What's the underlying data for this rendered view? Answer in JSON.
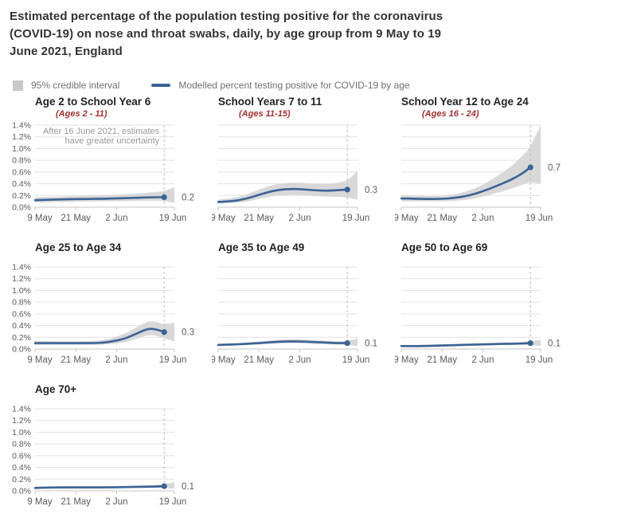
{
  "title": "Estimated percentage of the population testing positive for the coronavirus (COVID-19) on nose and throat swabs, daily, by age group from 9 May to 19 June 2021, England",
  "legend": {
    "ci_label": "95% credible interval",
    "line_label": "Modelled percent testing positive for COVID-19 by age"
  },
  "colors": {
    "line": "#3a6394",
    "band": "#d8d8d8",
    "grid": "#e2e2e2",
    "axis": "#c4c4c4",
    "dashed": "#bdbdbd",
    "tick_text": "#5a5a5a",
    "subtitle_red": "#a03030",
    "annotation": "#999999",
    "value_label": "#595959"
  },
  "axes": {
    "x_range": [
      0,
      41
    ],
    "y_range": [
      0,
      1.4
    ],
    "x_ticks": [
      {
        "day": 0,
        "label": "9 May"
      },
      {
        "day": 12,
        "label": "21 May"
      },
      {
        "day": 24,
        "label": "2 Jun"
      },
      {
        "day": 41,
        "label": "19 Jun"
      }
    ],
    "y_tick_labels": [
      "0.0%",
      "0.2%",
      "0.4%",
      "0.6%",
      "0.8%",
      "1.0%",
      "1.2%",
      "1.4%"
    ],
    "uncertainty_day": 38,
    "grid": true
  },
  "chart_data": [
    {
      "type": "line",
      "title": "Age 2 to School Year 6",
      "subtitle": "(Ages 2 - 11)",
      "end_label": "0.2",
      "show_y_labels": true,
      "annotation": [
        "After 16 June 2021, estimates",
        "have greater uncertainty"
      ],
      "line": [
        [
          0,
          0.12
        ],
        [
          6,
          0.13
        ],
        [
          12,
          0.14
        ],
        [
          18,
          0.14
        ],
        [
          24,
          0.15
        ],
        [
          30,
          0.16
        ],
        [
          34,
          0.17
        ],
        [
          38,
          0.17
        ]
      ],
      "band": [
        [
          0,
          0.08,
          0.17
        ],
        [
          6,
          0.09,
          0.18
        ],
        [
          12,
          0.09,
          0.19
        ],
        [
          18,
          0.1,
          0.2
        ],
        [
          24,
          0.1,
          0.21
        ],
        [
          30,
          0.11,
          0.23
        ],
        [
          34,
          0.11,
          0.25
        ],
        [
          38,
          0.11,
          0.27
        ],
        [
          41,
          0.07,
          0.34
        ]
      ]
    },
    {
      "type": "line",
      "title": "School Years 7 to 11",
      "subtitle": "(Ages 11-15)",
      "end_label": "0.3",
      "show_y_labels": false,
      "line": [
        [
          0,
          0.09
        ],
        [
          4,
          0.1
        ],
        [
          8,
          0.14
        ],
        [
          12,
          0.21
        ],
        [
          16,
          0.28
        ],
        [
          20,
          0.31
        ],
        [
          24,
          0.31
        ],
        [
          28,
          0.29
        ],
        [
          32,
          0.28
        ],
        [
          35,
          0.29
        ],
        [
          38,
          0.3
        ]
      ],
      "band": [
        [
          0,
          0.06,
          0.13
        ],
        [
          4,
          0.07,
          0.15
        ],
        [
          8,
          0.09,
          0.21
        ],
        [
          12,
          0.14,
          0.3
        ],
        [
          16,
          0.19,
          0.38
        ],
        [
          20,
          0.21,
          0.42
        ],
        [
          24,
          0.21,
          0.42
        ],
        [
          28,
          0.19,
          0.4
        ],
        [
          32,
          0.18,
          0.39
        ],
        [
          35,
          0.18,
          0.41
        ],
        [
          38,
          0.17,
          0.45
        ],
        [
          41,
          0.13,
          0.62
        ]
      ]
    },
    {
      "type": "line",
      "title": "School Year 12 to Age 24",
      "subtitle": "(Ages 16 - 24)",
      "end_label": "0.7",
      "show_y_labels": false,
      "line": [
        [
          0,
          0.15
        ],
        [
          6,
          0.14
        ],
        [
          12,
          0.14
        ],
        [
          16,
          0.16
        ],
        [
          20,
          0.2
        ],
        [
          24,
          0.27
        ],
        [
          28,
          0.36
        ],
        [
          32,
          0.46
        ],
        [
          35,
          0.55
        ],
        [
          38,
          0.68
        ]
      ],
      "band": [
        [
          0,
          0.1,
          0.2
        ],
        [
          6,
          0.1,
          0.19
        ],
        [
          12,
          0.1,
          0.19
        ],
        [
          16,
          0.11,
          0.22
        ],
        [
          20,
          0.13,
          0.28
        ],
        [
          24,
          0.18,
          0.38
        ],
        [
          28,
          0.24,
          0.52
        ],
        [
          32,
          0.31,
          0.68
        ],
        [
          35,
          0.37,
          0.84
        ],
        [
          38,
          0.44,
          1.02
        ],
        [
          41,
          0.4,
          1.4
        ]
      ]
    },
    {
      "type": "line",
      "title": "Age 25 to Age 34",
      "subtitle": null,
      "end_label": "0.3",
      "show_y_labels": true,
      "line": [
        [
          0,
          0.1
        ],
        [
          6,
          0.1
        ],
        [
          12,
          0.1
        ],
        [
          18,
          0.1
        ],
        [
          22,
          0.12
        ],
        [
          26,
          0.17
        ],
        [
          29,
          0.24
        ],
        [
          32,
          0.32
        ],
        [
          34,
          0.35
        ],
        [
          36,
          0.33
        ],
        [
          38,
          0.29
        ]
      ],
      "band": [
        [
          0,
          0.07,
          0.14
        ],
        [
          6,
          0.07,
          0.13
        ],
        [
          12,
          0.07,
          0.13
        ],
        [
          18,
          0.07,
          0.14
        ],
        [
          22,
          0.08,
          0.17
        ],
        [
          26,
          0.11,
          0.25
        ],
        [
          29,
          0.16,
          0.34
        ],
        [
          32,
          0.22,
          0.44
        ],
        [
          34,
          0.24,
          0.48
        ],
        [
          36,
          0.22,
          0.46
        ],
        [
          38,
          0.18,
          0.42
        ],
        [
          41,
          0.13,
          0.45
        ]
      ]
    },
    {
      "type": "line",
      "title": "Age 35 to Age 49",
      "subtitle": null,
      "end_label": "0.1",
      "show_y_labels": false,
      "line": [
        [
          0,
          0.07
        ],
        [
          6,
          0.08
        ],
        [
          12,
          0.1
        ],
        [
          16,
          0.12
        ],
        [
          20,
          0.13
        ],
        [
          24,
          0.13
        ],
        [
          28,
          0.12
        ],
        [
          32,
          0.11
        ],
        [
          35,
          0.1
        ],
        [
          38,
          0.1
        ]
      ],
      "band": [
        [
          0,
          0.05,
          0.09
        ],
        [
          6,
          0.06,
          0.1
        ],
        [
          12,
          0.08,
          0.13
        ],
        [
          16,
          0.09,
          0.15
        ],
        [
          20,
          0.1,
          0.17
        ],
        [
          24,
          0.1,
          0.17
        ],
        [
          28,
          0.09,
          0.15
        ],
        [
          32,
          0.08,
          0.14
        ],
        [
          35,
          0.08,
          0.13
        ],
        [
          38,
          0.07,
          0.14
        ],
        [
          41,
          0.05,
          0.18
        ]
      ]
    },
    {
      "type": "line",
      "title": "Age 50 to Age 69",
      "subtitle": null,
      "end_label": "0.1",
      "show_y_labels": false,
      "line": [
        [
          0,
          0.05
        ],
        [
          6,
          0.05
        ],
        [
          12,
          0.06
        ],
        [
          18,
          0.07
        ],
        [
          24,
          0.08
        ],
        [
          30,
          0.09
        ],
        [
          34,
          0.09
        ],
        [
          38,
          0.1
        ]
      ],
      "band": [
        [
          0,
          0.04,
          0.07
        ],
        [
          6,
          0.04,
          0.07
        ],
        [
          12,
          0.04,
          0.08
        ],
        [
          18,
          0.05,
          0.09
        ],
        [
          24,
          0.06,
          0.1
        ],
        [
          30,
          0.07,
          0.11
        ],
        [
          34,
          0.07,
          0.12
        ],
        [
          38,
          0.07,
          0.13
        ],
        [
          41,
          0.05,
          0.16
        ]
      ]
    },
    {
      "type": "line",
      "title": "Age 70+",
      "subtitle": null,
      "end_label": "0.1",
      "show_y_labels": true,
      "line": [
        [
          0,
          0.05
        ],
        [
          6,
          0.06
        ],
        [
          12,
          0.06
        ],
        [
          18,
          0.06
        ],
        [
          24,
          0.06
        ],
        [
          30,
          0.07
        ],
        [
          34,
          0.07
        ],
        [
          38,
          0.08
        ]
      ],
      "band": [
        [
          0,
          0.04,
          0.07
        ],
        [
          6,
          0.04,
          0.07
        ],
        [
          12,
          0.04,
          0.07
        ],
        [
          18,
          0.04,
          0.07
        ],
        [
          24,
          0.05,
          0.08
        ],
        [
          30,
          0.05,
          0.09
        ],
        [
          34,
          0.05,
          0.1
        ],
        [
          38,
          0.05,
          0.11
        ],
        [
          41,
          0.04,
          0.15
        ]
      ]
    }
  ]
}
